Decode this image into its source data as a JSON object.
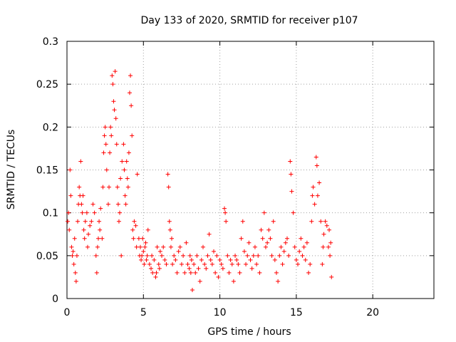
{
  "chart_data": {
    "type": "scatter",
    "title": "Day 133 of 2020, SRMTID for receiver p107",
    "xlabel": "GPS time / hours",
    "ylabel": "SRMTID / TECUs",
    "xlim": [
      0,
      24
    ],
    "ylim": [
      0,
      0.3
    ],
    "x_ticks": [
      0,
      5,
      10,
      15,
      20
    ],
    "x_tick_labels": [
      "0",
      "5",
      "10",
      "15",
      "20"
    ],
    "y_ticks": [
      0,
      0.05,
      0.1,
      0.15,
      0.2,
      0.25,
      0.3
    ],
    "y_tick_labels": [
      "0",
      "0.05",
      "0.1",
      "0.15",
      "0.2",
      "0.25",
      "0.3"
    ],
    "grid": true,
    "marker": "plus",
    "color": "#ff0000",
    "series": [
      {
        "name": "SRMTID",
        "points": [
          [
            0.05,
            0.09
          ],
          [
            0.1,
            0.1
          ],
          [
            0.15,
            0.08
          ],
          [
            0.2,
            0.15
          ],
          [
            0.25,
            0.12
          ],
          [
            0.3,
            0.06
          ],
          [
            0.35,
            0.05
          ],
          [
            0.4,
            0.055
          ],
          [
            0.45,
            0.04
          ],
          [
            0.5,
            0.07
          ],
          [
            0.55,
            0.03
          ],
          [
            0.6,
            0.02
          ],
          [
            0.65,
            0.05
          ],
          [
            0.7,
            0.09
          ],
          [
            0.75,
            0.11
          ],
          [
            0.8,
            0.13
          ],
          [
            0.85,
            0.12
          ],
          [
            0.9,
            0.16
          ],
          [
            0.95,
            0.11
          ],
          [
            1.0,
            0.1
          ],
          [
            1.05,
            0.12
          ],
          [
            1.1,
            0.08
          ],
          [
            1.15,
            0.07
          ],
          [
            1.2,
            0.09
          ],
          [
            1.3,
            0.1
          ],
          [
            1.35,
            0.06
          ],
          [
            1.4,
            0.075
          ],
          [
            1.5,
            0.085
          ],
          [
            1.6,
            0.09
          ],
          [
            1.7,
            0.11
          ],
          [
            1.8,
            0.1
          ],
          [
            1.9,
            0.05
          ],
          [
            1.95,
            0.03
          ],
          [
            2.0,
            0.06
          ],
          [
            2.05,
            0.07
          ],
          [
            2.1,
            0.09
          ],
          [
            2.15,
            0.08
          ],
          [
            2.2,
            0.105
          ],
          [
            2.3,
            0.07
          ],
          [
            2.35,
            0.13
          ],
          [
            2.4,
            0.17
          ],
          [
            2.45,
            0.19
          ],
          [
            2.5,
            0.2
          ],
          [
            2.55,
            0.18
          ],
          [
            2.6,
            0.15
          ],
          [
            2.7,
            0.11
          ],
          [
            2.75,
            0.13
          ],
          [
            2.8,
            0.17
          ],
          [
            2.85,
            0.2
          ],
          [
            2.9,
            0.19
          ],
          [
            2.95,
            0.26
          ],
          [
            3.0,
            0.25
          ],
          [
            3.05,
            0.23
          ],
          [
            3.1,
            0.22
          ],
          [
            3.15,
            0.265
          ],
          [
            3.2,
            0.21
          ],
          [
            3.25,
            0.18
          ],
          [
            3.3,
            0.13
          ],
          [
            3.35,
            0.11
          ],
          [
            3.4,
            0.09
          ],
          [
            3.45,
            0.1
          ],
          [
            3.5,
            0.14
          ],
          [
            3.55,
            0.05
          ],
          [
            3.6,
            0.16
          ],
          [
            3.7,
            0.18
          ],
          [
            3.75,
            0.15
          ],
          [
            3.8,
            0.12
          ],
          [
            3.85,
            0.11
          ],
          [
            3.9,
            0.16
          ],
          [
            3.95,
            0.14
          ],
          [
            4.0,
            0.13
          ],
          [
            4.05,
            0.17
          ],
          [
            4.1,
            0.24
          ],
          [
            4.15,
            0.26
          ],
          [
            4.2,
            0.225
          ],
          [
            4.25,
            0.19
          ],
          [
            4.3,
            0.08
          ],
          [
            4.35,
            0.07
          ],
          [
            4.4,
            0.09
          ],
          [
            4.5,
            0.085
          ],
          [
            4.55,
            0.06
          ],
          [
            4.6,
            0.145
          ],
          [
            4.7,
            0.07
          ],
          [
            4.75,
            0.05
          ],
          [
            4.8,
            0.06
          ],
          [
            4.85,
            0.045
          ],
          [
            4.9,
            0.05
          ],
          [
            4.95,
            0.07
          ],
          [
            5.0,
            0.055
          ],
          [
            5.05,
            0.04
          ],
          [
            5.1,
            0.06
          ],
          [
            5.15,
            0.065
          ],
          [
            5.2,
            0.045
          ],
          [
            5.25,
            0.05
          ],
          [
            5.3,
            0.08
          ],
          [
            5.4,
            0.04
          ],
          [
            5.5,
            0.035
          ],
          [
            5.55,
            0.05
          ],
          [
            5.6,
            0.03
          ],
          [
            5.7,
            0.045
          ],
          [
            5.8,
            0.025
          ],
          [
            5.85,
            0.03
          ],
          [
            5.9,
            0.06
          ],
          [
            6.0,
            0.04
          ],
          [
            6.05,
            0.035
          ],
          [
            6.1,
            0.055
          ],
          [
            6.2,
            0.05
          ],
          [
            6.3,
            0.06
          ],
          [
            6.4,
            0.045
          ],
          [
            6.5,
            0.04
          ],
          [
            6.6,
            0.145
          ],
          [
            6.65,
            0.13
          ],
          [
            6.7,
            0.09
          ],
          [
            6.75,
            0.08
          ],
          [
            6.8,
            0.06
          ],
          [
            6.85,
            0.07
          ],
          [
            6.9,
            0.04
          ],
          [
            7.0,
            0.05
          ],
          [
            7.1,
            0.045
          ],
          [
            7.2,
            0.03
          ],
          [
            7.3,
            0.055
          ],
          [
            7.4,
            0.06
          ],
          [
            7.5,
            0.04
          ],
          [
            7.6,
            0.05
          ],
          [
            7.7,
            0.03
          ],
          [
            7.8,
            0.065
          ],
          [
            7.9,
            0.04
          ],
          [
            8.0,
            0.035
          ],
          [
            8.05,
            0.05
          ],
          [
            8.1,
            0.03
          ],
          [
            8.15,
            0.045
          ],
          [
            8.2,
            0.01
          ],
          [
            8.3,
            0.04
          ],
          [
            8.4,
            0.03
          ],
          [
            8.5,
            0.05
          ],
          [
            8.6,
            0.035
          ],
          [
            8.7,
            0.02
          ],
          [
            8.8,
            0.045
          ],
          [
            8.9,
            0.06
          ],
          [
            9.0,
            0.04
          ],
          [
            9.1,
            0.035
          ],
          [
            9.2,
            0.05
          ],
          [
            9.3,
            0.075
          ],
          [
            9.4,
            0.045
          ],
          [
            9.5,
            0.04
          ],
          [
            9.6,
            0.055
          ],
          [
            9.7,
            0.03
          ],
          [
            9.8,
            0.05
          ],
          [
            9.9,
            0.025
          ],
          [
            10.0,
            0.045
          ],
          [
            10.1,
            0.04
          ],
          [
            10.2,
            0.035
          ],
          [
            10.3,
            0.105
          ],
          [
            10.35,
            0.1
          ],
          [
            10.4,
            0.09
          ],
          [
            10.5,
            0.05
          ],
          [
            10.6,
            0.03
          ],
          [
            10.7,
            0.045
          ],
          [
            10.8,
            0.04
          ],
          [
            10.9,
            0.02
          ],
          [
            11.0,
            0.05
          ],
          [
            11.1,
            0.045
          ],
          [
            11.2,
            0.04
          ],
          [
            11.3,
            0.03
          ],
          [
            11.4,
            0.07
          ],
          [
            11.5,
            0.09
          ],
          [
            11.6,
            0.055
          ],
          [
            11.7,
            0.04
          ],
          [
            11.8,
            0.05
          ],
          [
            11.9,
            0.065
          ],
          [
            12.0,
            0.045
          ],
          [
            12.1,
            0.035
          ],
          [
            12.2,
            0.05
          ],
          [
            12.3,
            0.06
          ],
          [
            12.4,
            0.04
          ],
          [
            12.5,
            0.05
          ],
          [
            12.6,
            0.03
          ],
          [
            12.7,
            0.08
          ],
          [
            12.8,
            0.07
          ],
          [
            12.9,
            0.1
          ],
          [
            13.0,
            0.06
          ],
          [
            13.1,
            0.065
          ],
          [
            13.2,
            0.08
          ],
          [
            13.3,
            0.07
          ],
          [
            13.4,
            0.05
          ],
          [
            13.5,
            0.09
          ],
          [
            13.6,
            0.045
          ],
          [
            13.7,
            0.03
          ],
          [
            13.8,
            0.02
          ],
          [
            13.9,
            0.05
          ],
          [
            14.0,
            0.06
          ],
          [
            14.1,
            0.04
          ],
          [
            14.2,
            0.055
          ],
          [
            14.3,
            0.065
          ],
          [
            14.4,
            0.07
          ],
          [
            14.5,
            0.05
          ],
          [
            14.6,
            0.16
          ],
          [
            14.65,
            0.145
          ],
          [
            14.7,
            0.125
          ],
          [
            14.8,
            0.1
          ],
          [
            14.9,
            0.06
          ],
          [
            15.0,
            0.045
          ],
          [
            15.1,
            0.04
          ],
          [
            15.2,
            0.055
          ],
          [
            15.3,
            0.07
          ],
          [
            15.4,
            0.05
          ],
          [
            15.5,
            0.06
          ],
          [
            15.6,
            0.045
          ],
          [
            15.7,
            0.065
          ],
          [
            15.8,
            0.03
          ],
          [
            15.9,
            0.04
          ],
          [
            16.0,
            0.09
          ],
          [
            16.05,
            0.12
          ],
          [
            16.1,
            0.13
          ],
          [
            16.2,
            0.11
          ],
          [
            16.3,
            0.165
          ],
          [
            16.35,
            0.155
          ],
          [
            16.4,
            0.12
          ],
          [
            16.5,
            0.135
          ],
          [
            16.6,
            0.09
          ],
          [
            16.7,
            0.04
          ],
          [
            16.75,
            0.06
          ],
          [
            16.8,
            0.075
          ],
          [
            16.9,
            0.09
          ],
          [
            17.0,
            0.085
          ],
          [
            17.1,
            0.06
          ],
          [
            17.15,
            0.08
          ],
          [
            17.2,
            0.05
          ],
          [
            17.25,
            0.065
          ],
          [
            17.3,
            0.025
          ]
        ]
      }
    ]
  }
}
